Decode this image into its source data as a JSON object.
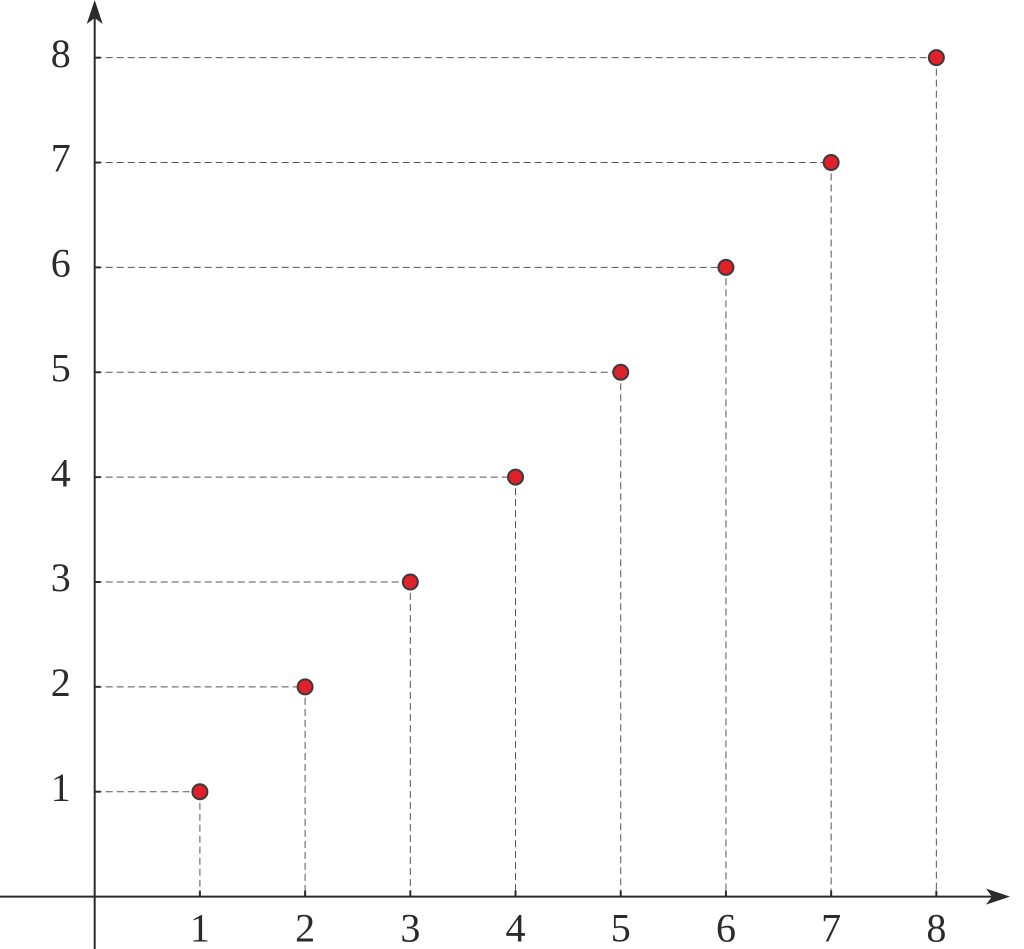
{
  "chart_data": {
    "type": "scatter",
    "x": [
      1,
      2,
      3,
      4,
      5,
      6,
      7,
      8
    ],
    "values": [
      1,
      2,
      3,
      4,
      5,
      6,
      7,
      8
    ],
    "color": "#e0202a",
    "xlim": [
      -0.9,
      8.7
    ],
    "ylim": [
      -0.5,
      8.55
    ],
    "xticks": [
      1,
      2,
      3,
      4,
      5,
      6,
      7,
      8
    ],
    "yticks": [
      1,
      2,
      3,
      4,
      5,
      6,
      7,
      8
    ],
    "guides": true
  }
}
